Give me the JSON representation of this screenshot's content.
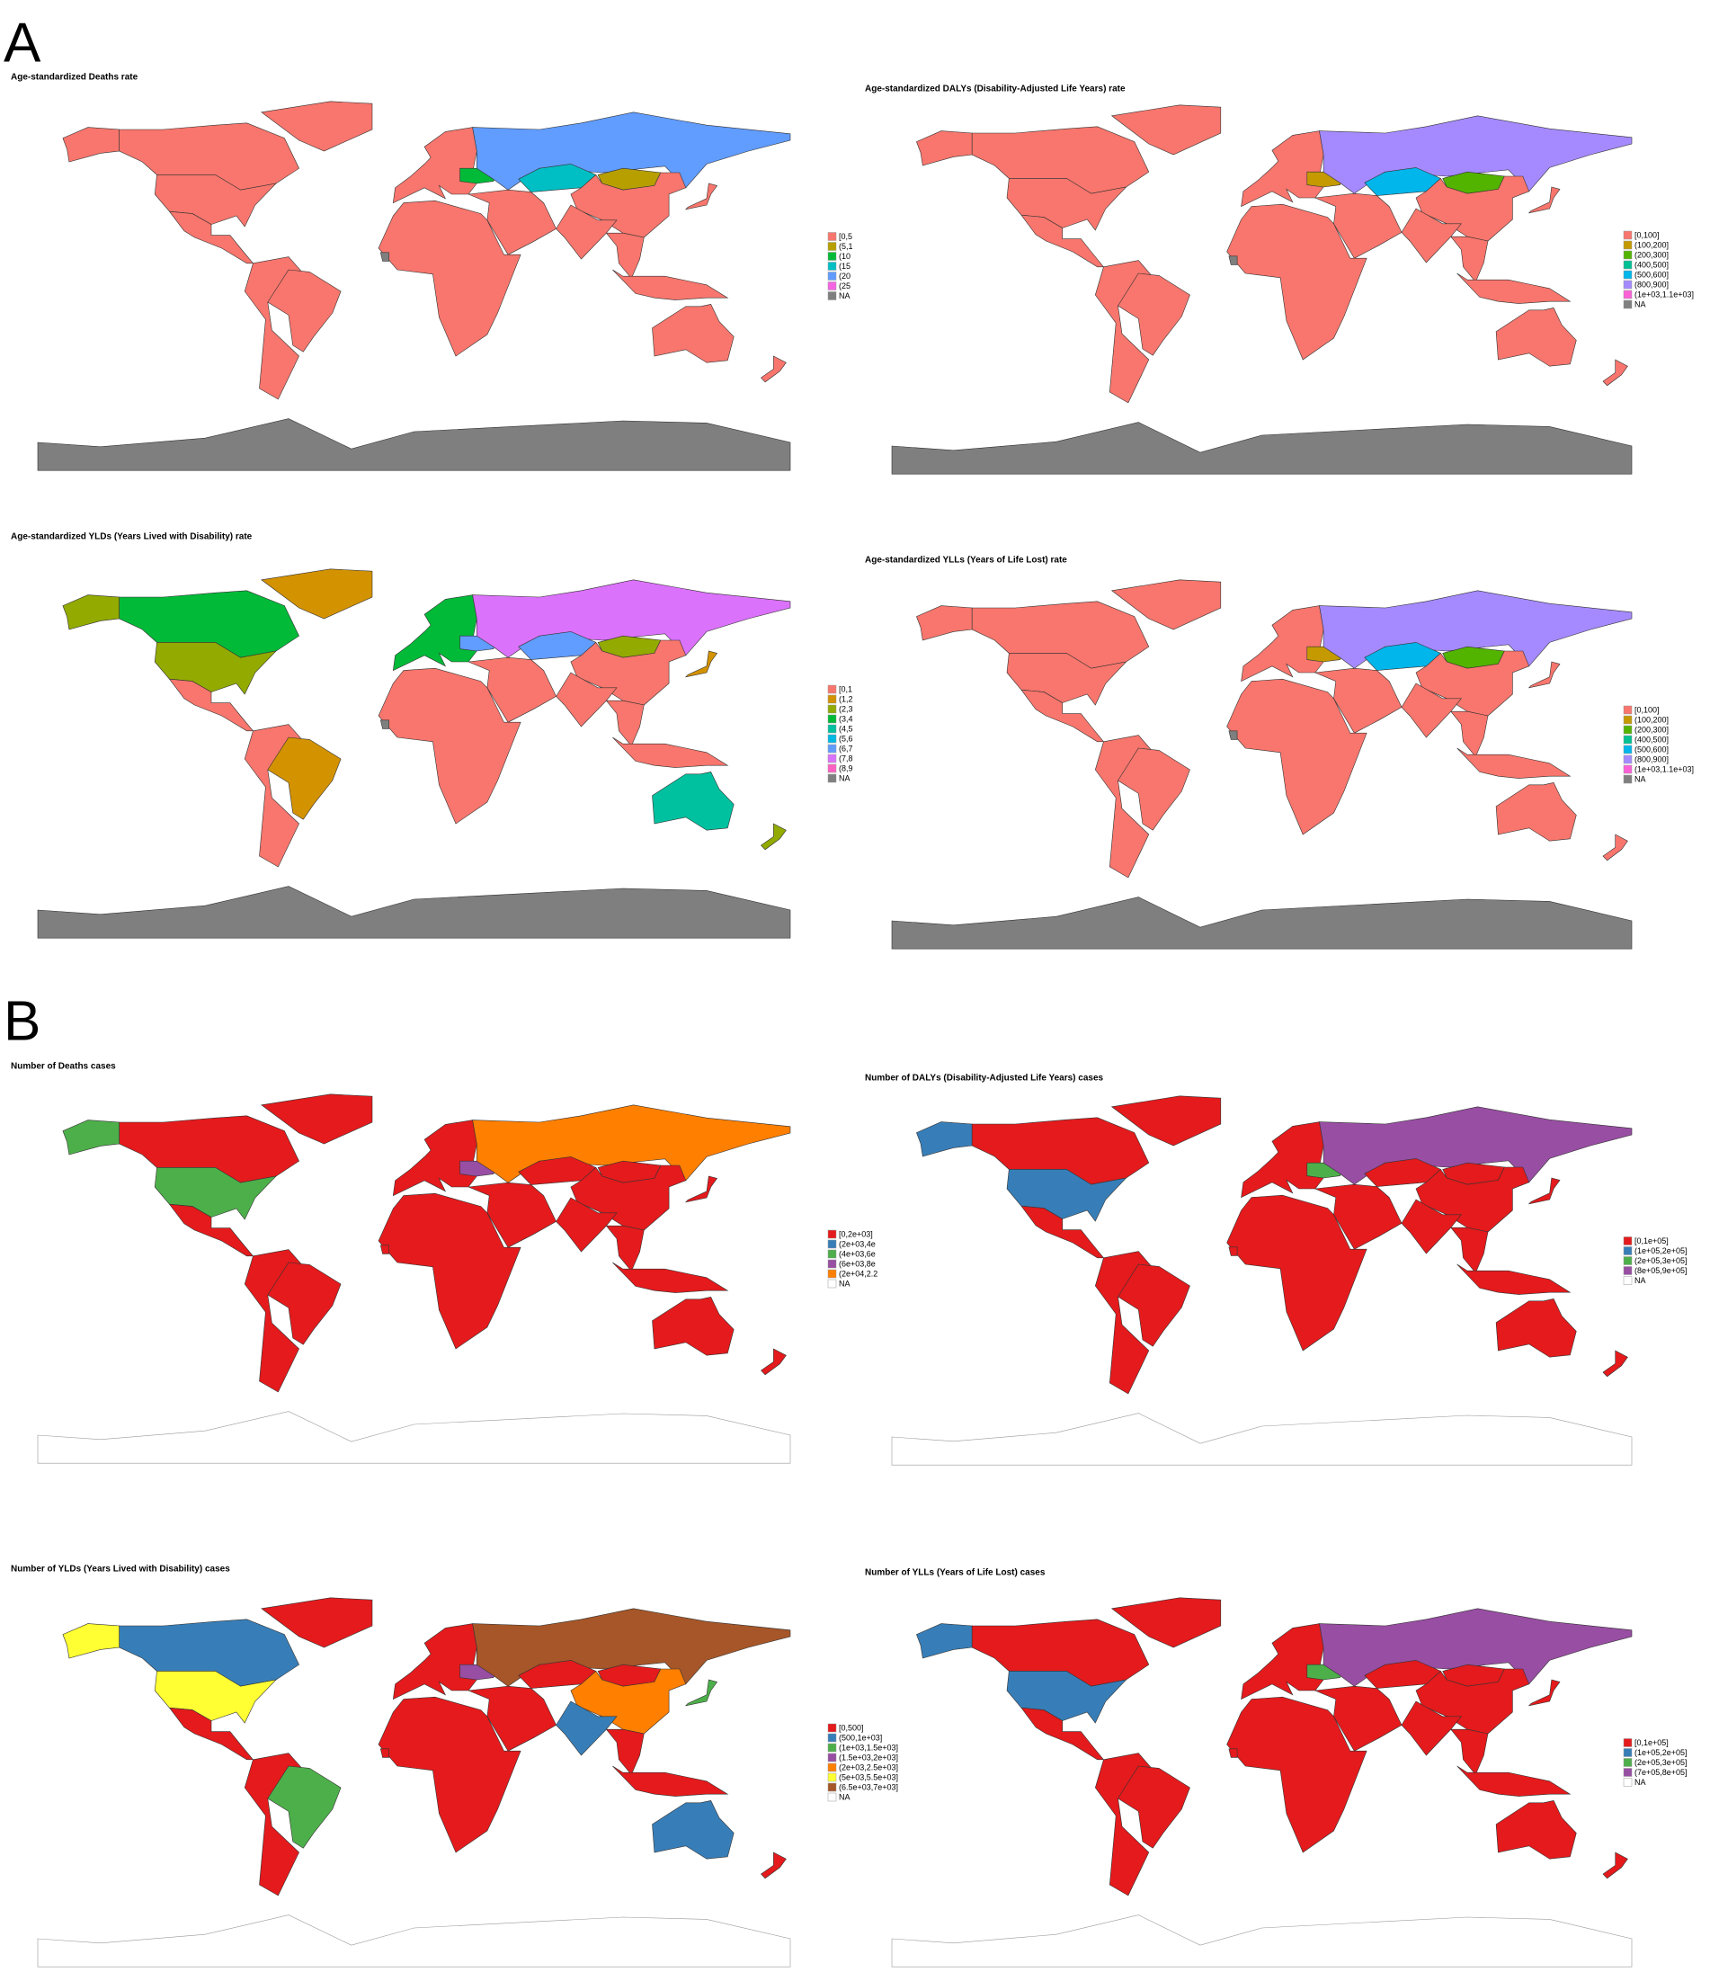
{
  "figure": {
    "sections": [
      {
        "label": "A",
        "maps": [
          {
            "title": "Age-standardized Deaths rate",
            "legend": [
              {
                "label": "[0,5",
                "color": "#F8766D"
              },
              {
                "label": "(5,1",
                "color": "#B79F00"
              },
              {
                "label": "(10",
                "color": "#00BA38"
              },
              {
                "label": "(15",
                "color": "#00BFC4"
              },
              {
                "label": "(20",
                "color": "#619CFF"
              },
              {
                "label": "(25",
                "color": "#F564E3"
              },
              {
                "label": "NA",
                "color": "#7F7F7F"
              }
            ]
          },
          {
            "title": "Age-standardized DALYs (Disability-Adjusted Life Years) rate",
            "legend": [
              {
                "label": "[0,100]",
                "color": "#F8766D"
              },
              {
                "label": "(100,200]",
                "color": "#C49A00"
              },
              {
                "label": "(200,300]",
                "color": "#53B400"
              },
              {
                "label": "(400,500]",
                "color": "#00C094"
              },
              {
                "label": "(500,600]",
                "color": "#00B6EB"
              },
              {
                "label": "(800,900]",
                "color": "#A58AFF"
              },
              {
                "label": "(1e+03,1.1e+03]",
                "color": "#FB61D7"
              },
              {
                "label": "NA",
                "color": "#7F7F7F"
              }
            ]
          },
          {
            "title": "Age-standardized YLDs (Years Lived with Disability) rate",
            "legend": [
              {
                "label": "[0,1",
                "color": "#F8766D"
              },
              {
                "label": "(1,2",
                "color": "#D39200"
              },
              {
                "label": "(2,3",
                "color": "#93AA00"
              },
              {
                "label": "(3,4",
                "color": "#00BA38"
              },
              {
                "label": "(4,5",
                "color": "#00C19F"
              },
              {
                "label": "(5,6",
                "color": "#00B9E3"
              },
              {
                "label": "(6,7",
                "color": "#619CFF"
              },
              {
                "label": "(7,8",
                "color": "#DB72FB"
              },
              {
                "label": "(8,9",
                "color": "#FF61C3"
              },
              {
                "label": "NA",
                "color": "#7F7F7F"
              }
            ]
          },
          {
            "title": "Age-standardized YLLs (Years of Life Lost) rate",
            "legend": [
              {
                "label": "[0,100]",
                "color": "#F8766D"
              },
              {
                "label": "(100,200]",
                "color": "#C49A00"
              },
              {
                "label": "(200,300]",
                "color": "#53B400"
              },
              {
                "label": "(400,500]",
                "color": "#00C094"
              },
              {
                "label": "(500,600]",
                "color": "#00B6EB"
              },
              {
                "label": "(800,900]",
                "color": "#A58AFF"
              },
              {
                "label": "(1e+03,1.1e+03]",
                "color": "#FB61D7"
              },
              {
                "label": "NA",
                "color": "#7F7F7F"
              }
            ]
          }
        ]
      },
      {
        "label": "B",
        "maps": [
          {
            "title": "Number of Deaths cases",
            "legend": [
              {
                "label": "[0,2e+03]",
                "color": "#E41A1C"
              },
              {
                "label": "(2e+03,4e",
                "color": "#377EB8"
              },
              {
                "label": "(4e+03,6e",
                "color": "#4DAF4A"
              },
              {
                "label": "(6e+03,8e",
                "color": "#984EA3"
              },
              {
                "label": "(2e+04,2.2",
                "color": "#FF7F00"
              },
              {
                "label": "NA",
                "color": "#FFFFFF"
              }
            ]
          },
          {
            "title": "Number of DALYs (Disability-Adjusted Life Years) cases",
            "legend": [
              {
                "label": "[0,1e+05]",
                "color": "#E41A1C"
              },
              {
                "label": "(1e+05,2e+05]",
                "color": "#377EB8"
              },
              {
                "label": "(2e+05,3e+05]",
                "color": "#4DAF4A"
              },
              {
                "label": "(8e+05,9e+05]",
                "color": "#984EA3"
              },
              {
                "label": "NA",
                "color": "#FFFFFF"
              }
            ]
          },
          {
            "title": "Number of YLDs (Years Lived with Disability) cases",
            "legend": [
              {
                "label": "[0,500]",
                "color": "#E41A1C"
              },
              {
                "label": "(500,1e+03]",
                "color": "#377EB8"
              },
              {
                "label": "(1e+03,1.5e+03]",
                "color": "#4DAF4A"
              },
              {
                "label": "(1.5e+03,2e+03]",
                "color": "#984EA3"
              },
              {
                "label": "(2e+03,2.5e+03]",
                "color": "#FF7F00"
              },
              {
                "label": "(5e+03,5.5e+03]",
                "color": "#FFFF33"
              },
              {
                "label": "(6.5e+03,7e+03]",
                "color": "#A65628"
              },
              {
                "label": "NA",
                "color": "#FFFFFF"
              }
            ]
          },
          {
            "title": "Number of YLLs (Years of Life Lost) cases",
            "legend": [
              {
                "label": "[0,1e+05]",
                "color": "#E41A1C"
              },
              {
                "label": "(1e+05,2e+05]",
                "color": "#377EB8"
              },
              {
                "label": "(2e+05,3e+05]",
                "color": "#4DAF4A"
              },
              {
                "label": "(7e+05,8e+05]",
                "color": "#984EA3"
              },
              {
                "label": "NA",
                "color": "#FFFFFF"
              }
            ]
          }
        ]
      }
    ]
  }
}
